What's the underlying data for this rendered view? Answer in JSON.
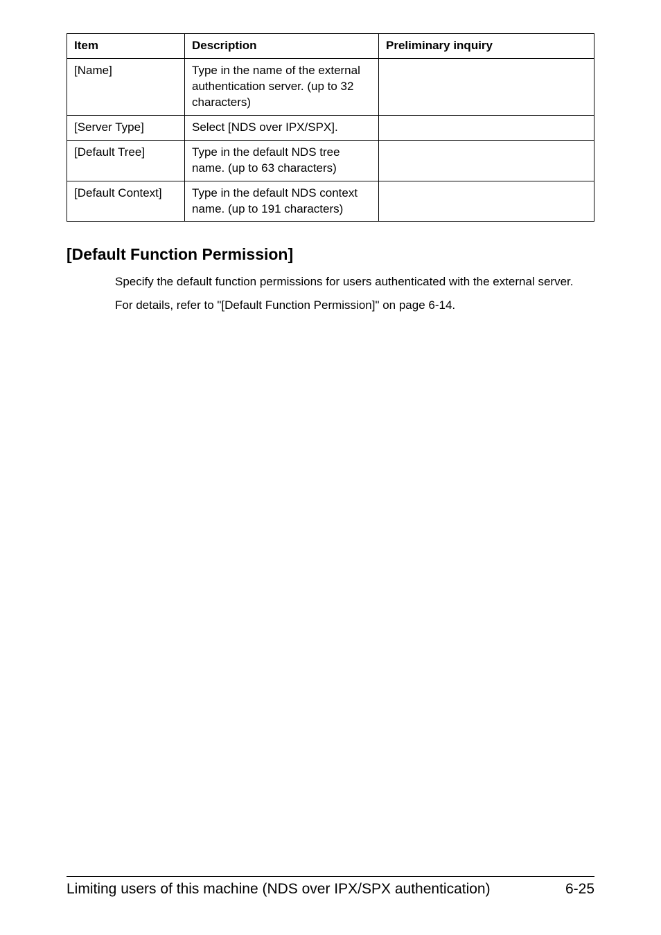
{
  "table": {
    "headers": {
      "item": "Item",
      "description": "Description",
      "inquiry": "Preliminary inquiry"
    },
    "rows": [
      {
        "item": "[Name]",
        "description": "Type in the name of the external authentication server. (up to 32 characters)",
        "inquiry": ""
      },
      {
        "item": "[Server Type]",
        "description": "Select [NDS over IPX/SPX].",
        "inquiry": ""
      },
      {
        "item": "[Default Tree]",
        "description": "Type in the default NDS tree name. (up to 63 characters)",
        "inquiry": ""
      },
      {
        "item": "[Default Context]",
        "description": "Type in the default NDS context name. (up to 191 characters)",
        "inquiry": ""
      }
    ]
  },
  "section": {
    "heading": "[Default Function Permission]",
    "para1": "Specify the default function permissions for users authenticated with the external server.",
    "para2": "For details, refer to \"[Default Function Permission]\" on page 6-14."
  },
  "footer": {
    "left": "Limiting users of this machine (NDS over IPX/SPX authentication)",
    "right": "6-25"
  }
}
